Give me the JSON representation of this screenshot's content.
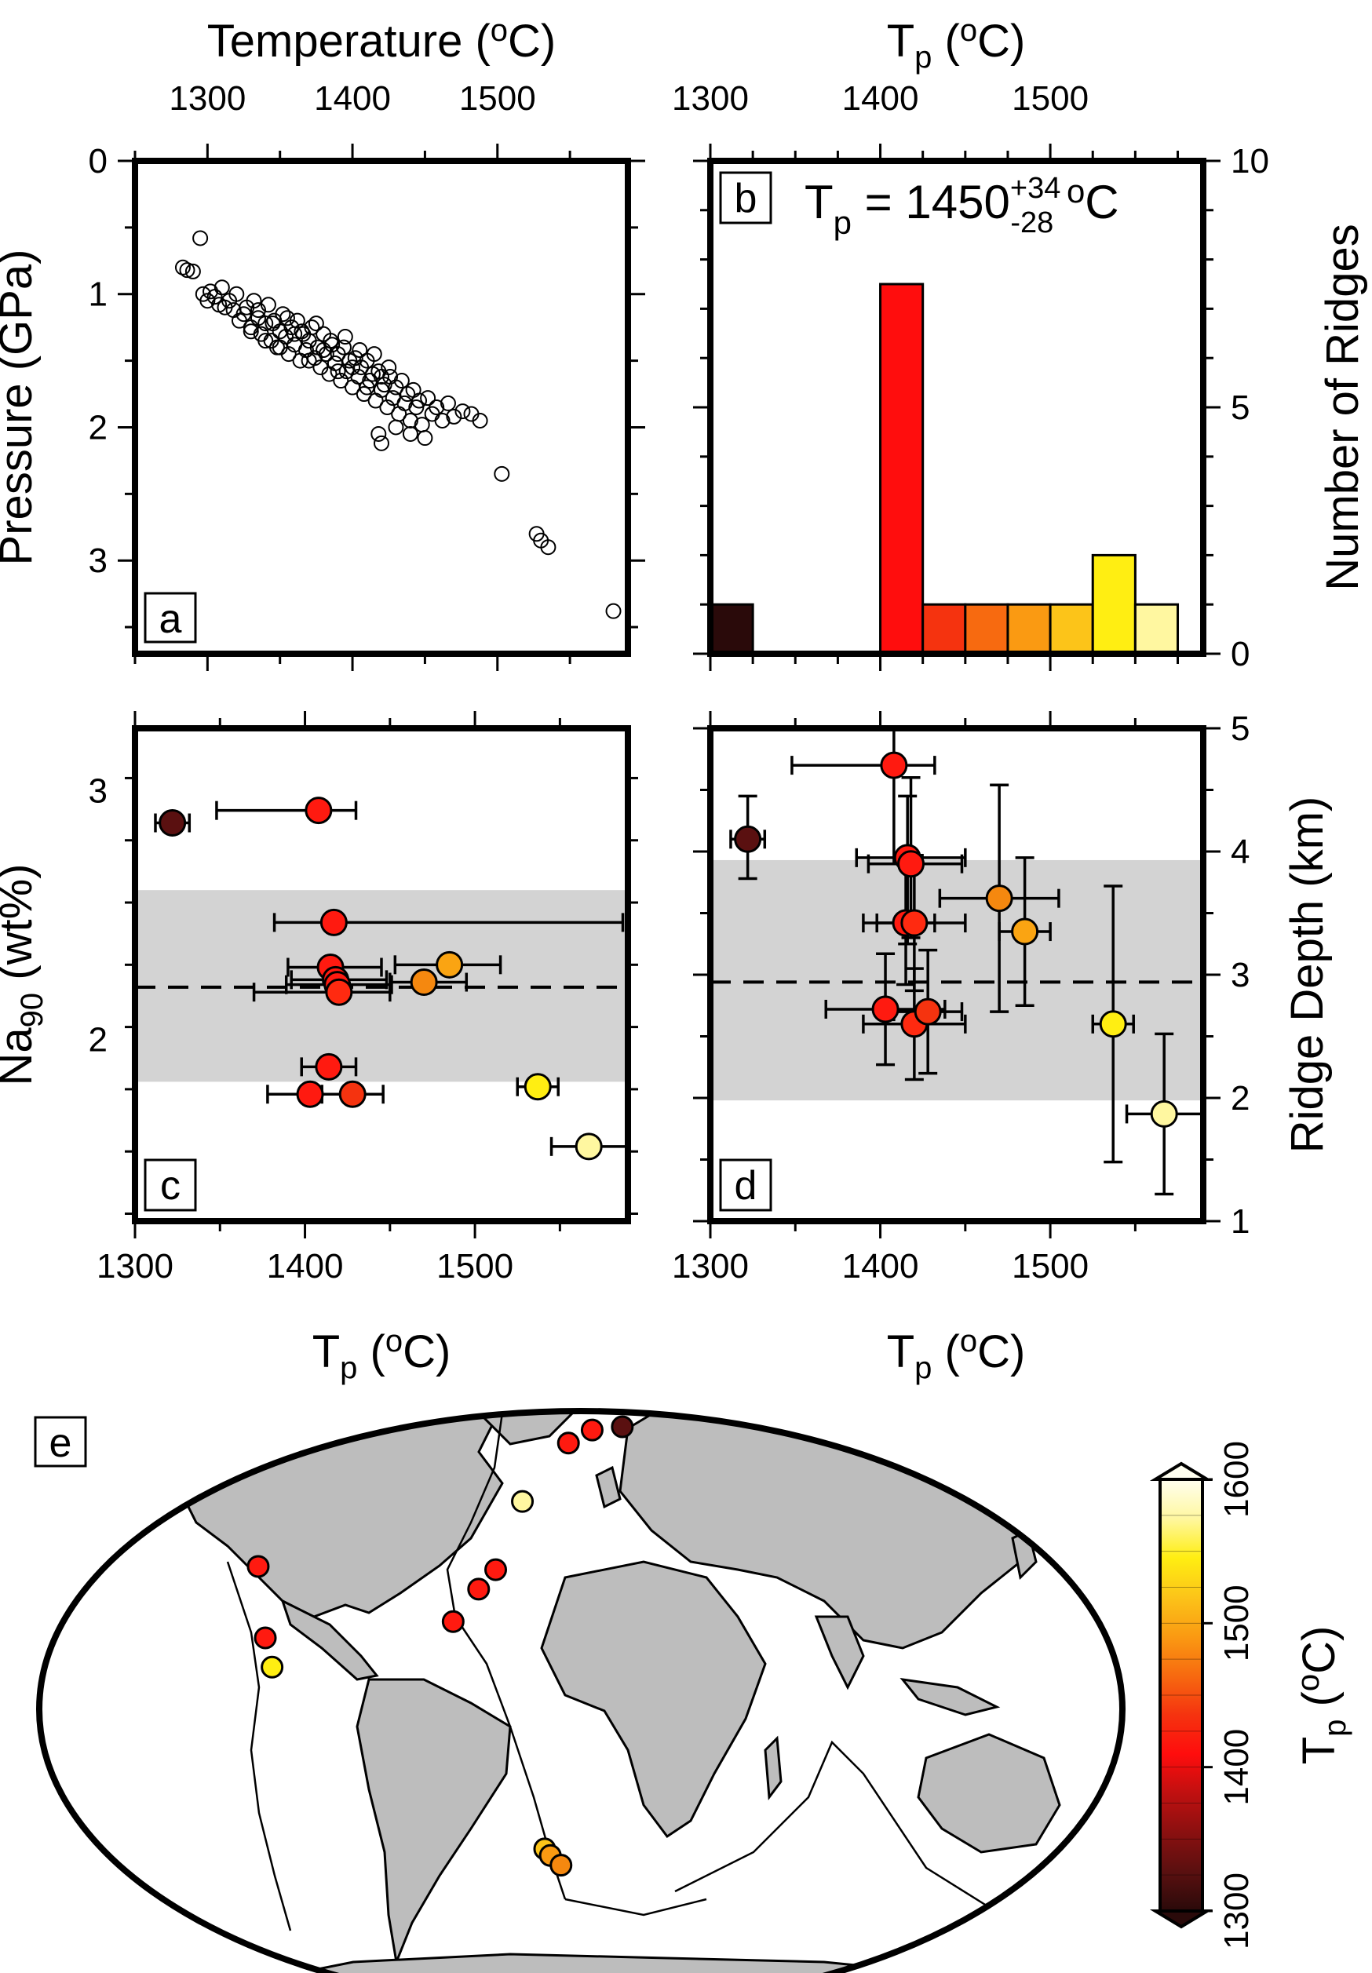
{
  "chart_data": [
    {
      "panel": "a",
      "type": "scatter",
      "xlabel": "Temperature (°C)",
      "xlabel_parts": [
        "Temperature (",
        "o",
        "C)"
      ],
      "ylabel": "Pressure (GPa)",
      "xlim": [
        1250,
        1590
      ],
      "ylim": [
        0,
        3.7
      ],
      "y_inverted": true,
      "xticks": [
        1300,
        1400,
        1500
      ],
      "yticks": [
        0,
        1,
        2,
        3
      ],
      "marker": "open-circle",
      "points": [
        [
          1283,
          0.8
        ],
        [
          1286,
          0.82
        ],
        [
          1290,
          0.83
        ],
        [
          1295,
          0.58
        ],
        [
          1297,
          1.0
        ],
        [
          1300,
          1.05
        ],
        [
          1302,
          0.98
        ],
        [
          1305,
          1.02
        ],
        [
          1308,
          1.08
        ],
        [
          1310,
          0.95
        ],
        [
          1312,
          1.1
        ],
        [
          1315,
          1.05
        ],
        [
          1318,
          1.12
        ],
        [
          1320,
          1.0
        ],
        [
          1322,
          1.2
        ],
        [
          1325,
          1.15
        ],
        [
          1327,
          1.1
        ],
        [
          1330,
          1.25
        ],
        [
          1332,
          1.05
        ],
        [
          1335,
          1.18
        ],
        [
          1337,
          1.3
        ],
        [
          1340,
          1.22
        ],
        [
          1342,
          1.08
        ],
        [
          1344,
          1.35
        ],
        [
          1346,
          1.2
        ],
        [
          1348,
          1.4
        ],
        [
          1350,
          1.28
        ],
        [
          1352,
          1.15
        ],
        [
          1354,
          1.32
        ],
        [
          1356,
          1.45
        ],
        [
          1358,
          1.25
        ],
        [
          1360,
          1.38
        ],
        [
          1362,
          1.2
        ],
        [
          1364,
          1.5
        ],
        [
          1366,
          1.3
        ],
        [
          1368,
          1.42
        ],
        [
          1370,
          1.35
        ],
        [
          1372,
          1.25
        ],
        [
          1374,
          1.48
        ],
        [
          1376,
          1.4
        ],
        [
          1378,
          1.55
        ],
        [
          1380,
          1.3
        ],
        [
          1382,
          1.45
        ],
        [
          1384,
          1.6
        ],
        [
          1386,
          1.38
        ],
        [
          1388,
          1.52
        ],
        [
          1390,
          1.45
        ],
        [
          1392,
          1.65
        ],
        [
          1394,
          1.4
        ],
        [
          1396,
          1.58
        ],
        [
          1398,
          1.5
        ],
        [
          1400,
          1.7
        ],
        [
          1402,
          1.48
        ],
        [
          1404,
          1.62
        ],
        [
          1406,
          1.55
        ],
        [
          1408,
          1.75
        ],
        [
          1410,
          1.5
        ],
        [
          1412,
          1.65
        ],
        [
          1414,
          1.6
        ],
        [
          1416,
          1.8
        ],
        [
          1418,
          1.58
        ],
        [
          1420,
          1.72
        ],
        [
          1422,
          1.68
        ],
        [
          1424,
          1.85
        ],
        [
          1426,
          1.62
        ],
        [
          1428,
          1.78
        ],
        [
          1430,
          1.7
        ],
        [
          1432,
          1.9
        ],
        [
          1434,
          1.65
        ],
        [
          1436,
          1.82
        ],
        [
          1438,
          1.75
        ],
        [
          1440,
          1.95
        ],
        [
          1442,
          1.72
        ],
        [
          1444,
          1.85
        ],
        [
          1446,
          1.8
        ],
        [
          1448,
          1.98
        ],
        [
          1452,
          1.78
        ],
        [
          1455,
          1.9
        ],
        [
          1458,
          1.85
        ],
        [
          1462,
          1.95
        ],
        [
          1466,
          1.82
        ],
        [
          1470,
          1.92
        ],
        [
          1476,
          1.88
        ],
        [
          1482,
          1.9
        ],
        [
          1488,
          1.95
        ],
        [
          1418,
          2.05
        ],
        [
          1420,
          2.12
        ],
        [
          1430,
          2.0
        ],
        [
          1440,
          2.05
        ],
        [
          1450,
          2.08
        ],
        [
          1330,
          1.28
        ],
        [
          1340,
          1.35
        ],
        [
          1350,
          1.4
        ],
        [
          1360,
          1.3
        ],
        [
          1370,
          1.5
        ],
        [
          1380,
          1.42
        ],
        [
          1390,
          1.58
        ],
        [
          1400,
          1.55
        ],
        [
          1410,
          1.7
        ],
        [
          1420,
          1.62
        ],
        [
          1335,
          1.12
        ],
        [
          1345,
          1.22
        ],
        [
          1355,
          1.18
        ],
        [
          1365,
          1.28
        ],
        [
          1375,
          1.22
        ],
        [
          1385,
          1.35
        ],
        [
          1395,
          1.32
        ],
        [
          1405,
          1.42
        ],
        [
          1415,
          1.45
        ],
        [
          1425,
          1.55
        ],
        [
          1503,
          2.35
        ],
        [
          1527,
          2.8
        ],
        [
          1530,
          2.85
        ],
        [
          1535,
          2.9
        ],
        [
          1580,
          3.38
        ]
      ],
      "inset_label": "a"
    },
    {
      "panel": "b",
      "type": "bar",
      "xlabel": "Tp (°C)",
      "xlabel_parts": [
        "T",
        "p",
        " (",
        "o",
        "C)"
      ],
      "ylabel": "Number of Ridges",
      "xlim": [
        1300,
        1590
      ],
      "ylim": [
        0,
        10
      ],
      "xticks": [
        1300,
        1400,
        1500
      ],
      "yticks": [
        0,
        5,
        10
      ],
      "bin_width": 25,
      "bins": [
        {
          "start": 1300,
          "count": 1,
          "color": "#2a0a0a"
        },
        {
          "start": 1400,
          "count": 7.5,
          "color": "#ff0d0d"
        },
        {
          "start": 1425,
          "count": 1,
          "color": "#f5330f"
        },
        {
          "start": 1450,
          "count": 1,
          "color": "#f76a10"
        },
        {
          "start": 1475,
          "count": 1,
          "color": "#fa9a12"
        },
        {
          "start": 1500,
          "count": 1,
          "color": "#fcc419"
        },
        {
          "start": 1525,
          "count": 2,
          "color": "#ffee12"
        },
        {
          "start": 1550,
          "count": 1,
          "color": "#fff7a0"
        }
      ],
      "annotation_parts": [
        "T",
        "p",
        " = 1450",
        "+34",
        "-28",
        " ",
        "o",
        "C"
      ],
      "inset_label": "b"
    },
    {
      "panel": "c",
      "type": "scatter",
      "xlabel": "Tp (°C)",
      "xlabel_parts": [
        "T",
        "p",
        " (",
        "o",
        "C)"
      ],
      "ylabel": "Na90 (wt%)",
      "ylabel_parts": [
        "Na",
        "90",
        " (wt%)"
      ],
      "xlim": [
        1300,
        1590
      ],
      "ylim": [
        1.27,
        3.25
      ],
      "xticks": [
        1300,
        1400,
        1500
      ],
      "yticks": [
        2,
        3
      ],
      "mean_line": 2.21,
      "band": [
        1.83,
        2.6
      ],
      "points": [
        {
          "x": 1322,
          "y": 2.87,
          "xerr": [
            10,
            10
          ],
          "color": "#5a1010"
        },
        {
          "x": 1408,
          "y": 2.92,
          "xerr": [
            60,
            22
          ],
          "color": "#ff1a10"
        },
        {
          "x": 1417,
          "y": 2.47,
          "xerr": [
            35,
            170
          ],
          "color": "#ff1a10"
        },
        {
          "x": 1415,
          "y": 2.29,
          "xerr": [
            25,
            30
          ],
          "color": "#ff1a10"
        },
        {
          "x": 1418,
          "y": 2.24,
          "xerr": [
            26,
            30
          ],
          "color": "#ff1a10"
        },
        {
          "x": 1419,
          "y": 2.22,
          "xerr": [
            30,
            32
          ],
          "color": "#ff1a10"
        },
        {
          "x": 1420,
          "y": 2.19,
          "xerr": [
            50,
            30
          ],
          "color": "#ff2a10"
        },
        {
          "x": 1470,
          "y": 2.23,
          "xerr": [
            20,
            25
          ],
          "color": "#f5880f"
        },
        {
          "x": 1485,
          "y": 2.3,
          "xerr": [
            32,
            30
          ],
          "color": "#faa412"
        },
        {
          "x": 1414,
          "y": 1.89,
          "xerr": [
            16,
            16
          ],
          "color": "#ff1a10"
        },
        {
          "x": 1403,
          "y": 1.78,
          "xerr": [
            25,
            25
          ],
          "color": "#ff1a10"
        },
        {
          "x": 1428,
          "y": 1.78,
          "xerr": [
            18,
            18
          ],
          "color": "#f5330f"
        },
        {
          "x": 1537,
          "y": 1.81,
          "xerr": [
            12,
            12
          ],
          "color": "#ffee12"
        },
        {
          "x": 1567,
          "y": 1.57,
          "xerr": [
            22,
            22
          ],
          "color": "#fff7a0"
        }
      ],
      "inset_label": "c"
    },
    {
      "panel": "d",
      "type": "scatter",
      "xlabel": "Tp (°C)",
      "xlabel_parts": [
        "T",
        "p",
        " (",
        "o",
        "C)"
      ],
      "ylabel": "Ridge Depth (km)",
      "xlim": [
        1300,
        1590
      ],
      "ylim": [
        1,
        5
      ],
      "xticks": [
        1300,
        1400,
        1500
      ],
      "yticks": [
        1,
        2,
        3,
        4,
        5
      ],
      "mean_line": 2.94,
      "band": [
        1.98,
        3.93
      ],
      "points": [
        {
          "x": 1322,
          "y": 4.1,
          "xerr": [
            10,
            10
          ],
          "yerr": [
            0.32,
            0.35
          ],
          "color": "#5a1010"
        },
        {
          "x": 1408,
          "y": 4.7,
          "xerr": [
            60,
            24
          ],
          "yerr": [
            0.8,
            0.8
          ],
          "color": "#ff1a10"
        },
        {
          "x": 1416,
          "y": 3.95,
          "xerr": [
            30,
            34
          ],
          "yerr": [
            0.7,
            0.5
          ],
          "color": "#ff1a10"
        },
        {
          "x": 1418,
          "y": 3.9,
          "xerr": [
            25,
            30
          ],
          "yerr": [
            0.6,
            0.7
          ],
          "color": "#ff1a10"
        },
        {
          "x": 1415,
          "y": 3.42,
          "xerr": [
            17,
            17
          ],
          "yerr": [
            0.5,
            0.5
          ],
          "color": "#ff1a10"
        },
        {
          "x": 1420,
          "y": 3.42,
          "xerr": [
            30,
            30
          ],
          "yerr": [
            0.55,
            0.55
          ],
          "color": "#ff2a10"
        },
        {
          "x": 1470,
          "y": 3.62,
          "xerr": [
            35,
            35
          ],
          "yerr": [
            0.92,
            0.92
          ],
          "color": "#f5880f"
        },
        {
          "x": 1485,
          "y": 3.35,
          "xerr": [
            15,
            15
          ],
          "yerr": [
            0.6,
            0.6
          ],
          "color": "#faa412"
        },
        {
          "x": 1403,
          "y": 2.72,
          "xerr": [
            35,
            35
          ],
          "yerr": [
            0.45,
            0.45
          ],
          "color": "#ff1a10"
        },
        {
          "x": 1420,
          "y": 2.6,
          "xerr": [
            30,
            30
          ],
          "yerr": [
            0.45,
            0.45
          ],
          "color": "#ff2a10"
        },
        {
          "x": 1428,
          "y": 2.7,
          "xerr": [
            20,
            20
          ],
          "yerr": [
            0.5,
            0.5
          ],
          "color": "#f5330f"
        },
        {
          "x": 1537,
          "y": 2.6,
          "xerr": [
            12,
            12
          ],
          "yerr": [
            1.12,
            1.12
          ],
          "color": "#ffee12"
        },
        {
          "x": 1567,
          "y": 1.87,
          "xerr": [
            22,
            22
          ],
          "yerr": [
            0.65,
            0.65
          ],
          "color": "#fff7a0"
        }
      ],
      "inset_label": "d"
    },
    {
      "panel": "e",
      "type": "map",
      "projection": "robinson-like",
      "colorbar": {
        "label_parts": [
          "T",
          "p",
          " (",
          "o",
          "C)"
        ],
        "range": [
          1300,
          1600
        ],
        "ticks": [
          1300,
          1400,
          1500,
          1600
        ],
        "stops": [
          "#2a0a0a",
          "#5a1010",
          "#8a1010",
          "#c01010",
          "#ff0d0d",
          "#f5330f",
          "#f76a10",
          "#fa9a12",
          "#fcc419",
          "#ffee12",
          "#fff7a0",
          "#fffff0"
        ]
      },
      "sites": [
        {
          "lon": -126,
          "lat": 44,
          "color": "#ff1a10"
        },
        {
          "lon": -109,
          "lat": 22,
          "color": "#ff1a10"
        },
        {
          "lon": -104,
          "lat": 13,
          "color": "#ffee12"
        },
        {
          "lon": -28,
          "lat": 64,
          "color": "#fff7a0"
        },
        {
          "lon": -33,
          "lat": 43,
          "color": "#ff1a10"
        },
        {
          "lon": -38,
          "lat": 37,
          "color": "#ff1a10"
        },
        {
          "lon": -45,
          "lat": 27,
          "color": "#ff1a10"
        },
        {
          "lon": -8,
          "lat": 82,
          "color": "#ff1a10"
        },
        {
          "lon": 8,
          "lat": 86,
          "color": "#ff1a10"
        },
        {
          "lon": 30,
          "lat": 87,
          "color": "#5a1010"
        },
        {
          "lon": -14,
          "lat": -43,
          "color": "#fcc419"
        },
        {
          "lon": -12,
          "lat": -45,
          "color": "#fa9a12"
        },
        {
          "lon": -8,
          "lat": -48,
          "color": "#f5880f"
        }
      ],
      "inset_label": "e"
    }
  ]
}
